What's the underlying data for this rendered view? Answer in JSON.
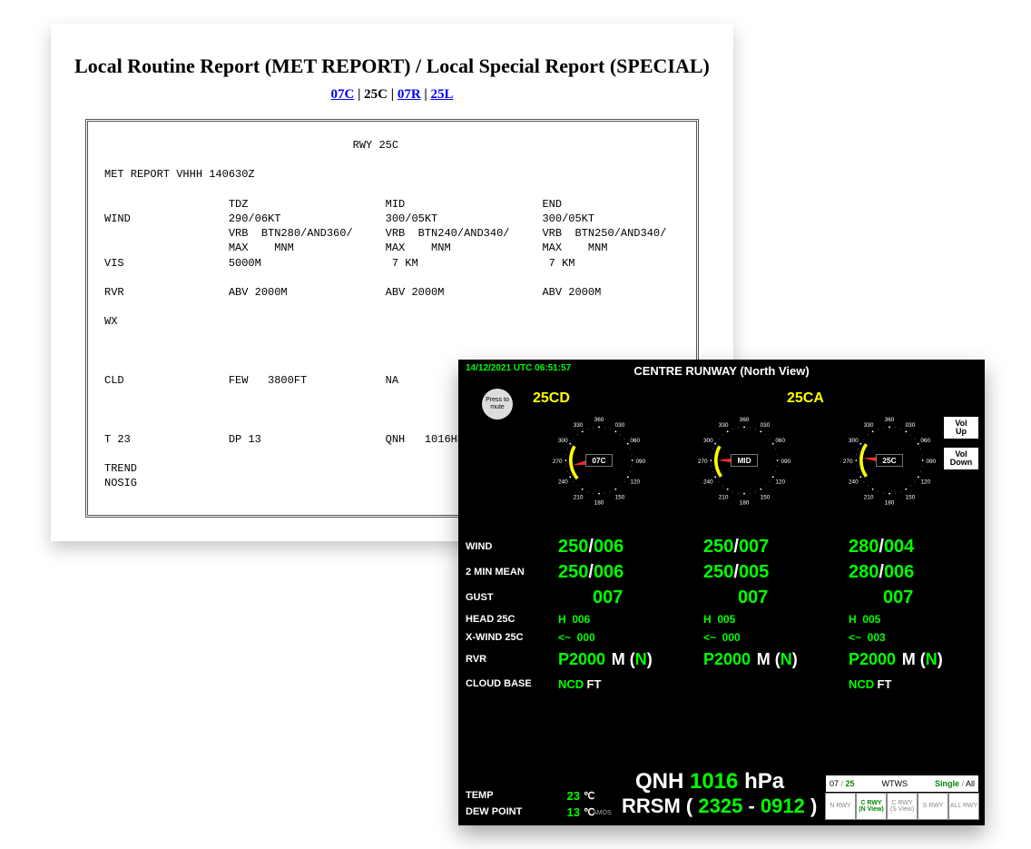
{
  "met": {
    "title": "Local Routine Report (MET REPORT) / Local Special Report (SPECIAL)",
    "links": {
      "l1": "07C",
      "l2": "25C",
      "l3": "07R",
      "l4": "25L"
    },
    "active_link": "25C",
    "link_color": "#0000ee",
    "body": "                                      RWY 25C\n\nMET REPORT VHHH 140630Z\n\n                   TDZ                     MID                     END\nWIND               290/06KT                300/05KT                300/05KT\n                   VRB  BTN280/AND360/     VRB  BTN240/AND340/     VRB  BTN250/AND340/\n                   MAX    MNM              MAX    MNM              MAX    MNM\nVIS                5000M                    7 KM                    7 KM\n\nRVR                ABV 2000M               ABV 2000M               ABV 2000M\n\nWX\n\n\n\nCLD                FEW   3800FT            NA                      FEW   3800FT\n\n\n\nT 23               DP 13                   QNH   1016HPA\n\nTREND\nNOSIG"
  },
  "amos": {
    "datetime": "14/12/2021  UTC 06:51:57",
    "title": "CENTRE RUNWAY (North View)",
    "mute": "Press to mute",
    "sensor1": "25CD",
    "sensor2": "25CA",
    "vol_up": "Vol\nUp",
    "vol_down": "Vol\nDown",
    "colors": {
      "bg": "#000000",
      "green": "#00ff00",
      "yellow": "#ffff00",
      "white": "#ffffff",
      "red": "#ff2a2a",
      "btn_bg": "#ffffff",
      "btn_fg": "#000000",
      "inactive": "#888888",
      "nav_green": "#008800"
    },
    "compasses": [
      {
        "center": "07C",
        "needle_deg": 260,
        "arc_from": 230,
        "arc_to": 300
      },
      {
        "center": "MID",
        "needle_deg": 270,
        "arc_from": 235,
        "arc_to": 300
      },
      {
        "center": "25C",
        "needle_deg": 275,
        "arc_from": 235,
        "arc_to": 305
      }
    ],
    "tick_labels": [
      "360",
      "030",
      "060",
      "090",
      "120",
      "150",
      "180",
      "210",
      "240",
      "270",
      "300",
      "330"
    ],
    "rows": {
      "wind_lbl": "WIND",
      "wind": [
        {
          "dir": "250",
          "spd": "006"
        },
        {
          "dir": "250",
          "spd": "007"
        },
        {
          "dir": "280",
          "spd": "004"
        }
      ],
      "mean_lbl": "2 MIN MEAN",
      "mean": [
        {
          "dir": "250",
          "spd": "006"
        },
        {
          "dir": "250",
          "spd": "005"
        },
        {
          "dir": "280",
          "spd": "006"
        }
      ],
      "gust_lbl": "GUST",
      "gust": [
        "007",
        "007",
        "007"
      ],
      "head_lbl": "HEAD 25C",
      "head": [
        "H  006",
        "H  005",
        "H  005"
      ],
      "xwind_lbl": "X-WIND 25C",
      "xwind": [
        "<~  000",
        "<~  000",
        "<~  003"
      ],
      "rvr_lbl": "RVR",
      "rvr": [
        {
          "p": "P2000",
          "m": "M (",
          "n": "N",
          "c": ")"
        },
        {
          "p": "P2000",
          "m": "M (",
          "n": "N",
          "c": ")"
        },
        {
          "p": "P2000",
          "m": "M (",
          "n": "N",
          "c": ")"
        }
      ],
      "cloud_lbl": "CLOUD BASE",
      "cloud": [
        {
          "ncd": "NCD",
          "ft": "FT"
        },
        null,
        {
          "ncd": "NCD",
          "ft": "FT"
        }
      ],
      "temp_lbl": "TEMP",
      "temp": "23",
      "dew_lbl": "DEW POINT",
      "dew": "13",
      "deg": "℃"
    },
    "qnh": {
      "label": "QNH",
      "value": "1016",
      "unit": "hPa"
    },
    "rrsm": {
      "label": "RRSM",
      "open": "(",
      "a": "2325",
      "dash": " - ",
      "b": "0912",
      "close": ")"
    },
    "amos_tag": "AMOS",
    "nav": {
      "rwy07": "07",
      "rwy25": "25",
      "wtws": "WTWS",
      "single": "Single",
      "all": "All",
      "btns": [
        "N RWY",
        "C RWY\n(N View)",
        "C RWY\n(S View)",
        "S RWY",
        "ALL RWY"
      ],
      "active": 1
    }
  }
}
